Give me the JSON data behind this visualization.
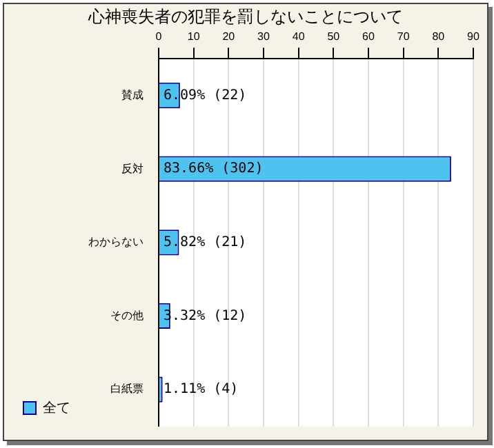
{
  "chart_data": {
    "type": "bar",
    "orientation": "horizontal",
    "title": "心神喪失者の犯罪を罰しないことについて",
    "categories": [
      "賛成",
      "反対",
      "わからない",
      "その他",
      "白紙票"
    ],
    "series": [
      {
        "name": "全て",
        "color": "#4fc3f0",
        "values": [
          6.09,
          83.66,
          5.82,
          3.32,
          1.11
        ],
        "value_labels": [
          "6.09% (22)",
          "83.66% (302)",
          "5.82% (21)",
          "3.32% (12)",
          "1.11% (4)"
        ]
      }
    ],
    "xlim": [
      0,
      90
    ],
    "xticks": [
      0,
      10,
      20,
      30,
      40,
      50,
      60,
      70,
      80,
      90
    ],
    "grid": "x",
    "legend": "bottom left"
  }
}
